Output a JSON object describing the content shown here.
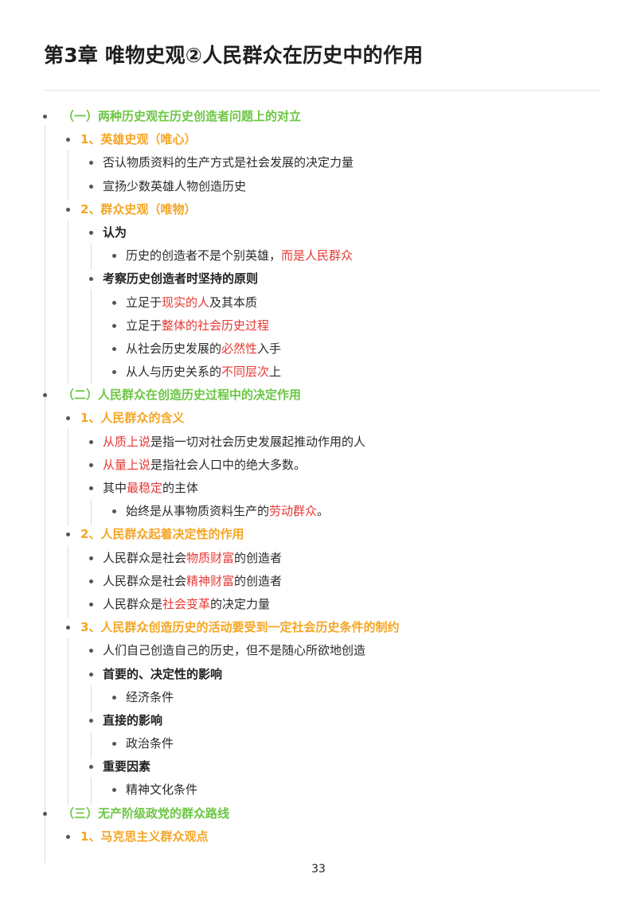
{
  "title": "第3章 唯物史观②人民群众在历史中的作用",
  "page_number": "33",
  "colors": {
    "section": "#6cc644",
    "subsection": "#f5a623",
    "highlight": "#e53935"
  },
  "sections": [
    {
      "label": "（一）两种历史观在历史创造者问题上的对立",
      "children": [
        {
          "label": "1、英雄史观（唯心）",
          "items": [
            "否认物质资料的生产方式是社会发展的决定力量",
            "宣扬少数英雄人物创造历史"
          ]
        },
        {
          "label": "2、群众史观（唯物）",
          "groups": [
            {
              "label": "认为",
              "items": [
                {
                  "a": "历史的创造者不是个别英雄，",
                  "b": "而是人民群众",
                  "c": ""
                }
              ]
            },
            {
              "label": "考察历史创造者时坚持的原则",
              "items": [
                {
                  "a": "立足于",
                  "b": "现实的人",
                  "c": "及其本质"
                },
                {
                  "a": "立足于",
                  "b": "整体的社会历史过程",
                  "c": ""
                },
                {
                  "a": "从社会历史发展的",
                  "b": "必然性",
                  "c": "入手"
                },
                {
                  "a": "从人与历史关系的",
                  "b": "不同层次",
                  "c": "上"
                }
              ]
            }
          ]
        }
      ]
    },
    {
      "label": "（二）人民群众在创造历史过程中的决定作用",
      "children": [
        {
          "label": "1、人民群众的含义",
          "items": [
            {
              "a": "",
              "b": "从质上说",
              "c": "是指一切对社会历史发展起推动作用的人"
            },
            {
              "a": "",
              "b": "从量上说",
              "c": "是指社会人口中的绝大多数。"
            },
            {
              "a": "其中",
              "b": "最稳定",
              "c": "的主体"
            }
          ],
          "sub_item": {
            "a": "始终是从事物质资料生产的",
            "b": "劳动群众",
            "c": "。"
          }
        },
        {
          "label": "2、人民群众起着决定性的作用",
          "items": [
            {
              "a": "人民群众是社会",
              "b": "物质财富",
              "c": "的创造者"
            },
            {
              "a": "人民群众是社会",
              "b": "精神财富",
              "c": "的创造者"
            },
            {
              "a": "人民群众是",
              "b": "社会变革",
              "c": "的决定力量"
            }
          ]
        },
        {
          "label": "3、人民群众创造历史的活动要受到一定社会历史条件的制约",
          "plain": "人们自己创造自己的历史，但不是随心所欲地创造",
          "groups": [
            {
              "label": "首要的、决定性的影响",
              "item": "经济条件"
            },
            {
              "label": "直接的影响",
              "item": "政治条件"
            },
            {
              "label": "重要因素",
              "item": "精神文化条件"
            }
          ]
        }
      ]
    },
    {
      "label": "（三）无产阶级政党的群众路线",
      "children": [
        {
          "label": "1、马克思主义群众观点"
        }
      ]
    }
  ]
}
